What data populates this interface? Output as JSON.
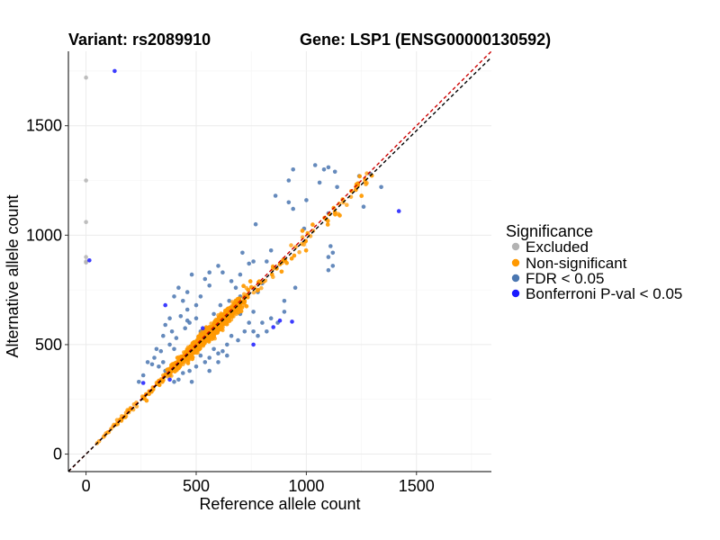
{
  "chart_data": {
    "type": "scatter",
    "title_left": "Variant: rs2089910",
    "title_right": "Gene: LSP1 (ENSG00000130592)",
    "xlabel": "Reference allele count",
    "ylabel": "Alternative allele count",
    "xlim": [
      -80,
      1840
    ],
    "ylim": [
      -80,
      1840
    ],
    "xticks": [
      0,
      500,
      1000,
      1500
    ],
    "yticks": [
      0,
      500,
      1000,
      1500
    ],
    "grid": true,
    "legend": {
      "title": "Significance",
      "position": "right",
      "entries": [
        {
          "key": "excluded",
          "label": "Excluded",
          "color": "#b3b3b3"
        },
        {
          "key": "nonsig",
          "label": "Non-significant",
          "color": "#ff9900"
        },
        {
          "key": "fdr",
          "label": "FDR < 0.05",
          "color": "#4a76b0"
        },
        {
          "key": "bonf",
          "label": "Bonferroni P-val < 0.05",
          "color": "#1a1aff"
        }
      ]
    },
    "reference_lines": [
      {
        "name": "identity",
        "slope": 1.0,
        "intercept": 0,
        "color": "#cc0000",
        "style": "dashed"
      },
      {
        "name": "fit",
        "slope": 0.985,
        "intercept": 0,
        "color": "#000000",
        "style": "dashed"
      }
    ],
    "series": [
      {
        "key": "excluded",
        "points": [
          [
            0,
            1720
          ],
          [
            0,
            1250
          ],
          [
            0,
            1060
          ],
          [
            0,
            900
          ],
          [
            0,
            880
          ],
          [
            0,
            875
          ]
        ]
      },
      {
        "key": "bonf",
        "points": [
          [
            130,
            1750
          ],
          [
            15,
            885
          ],
          [
            1420,
            1110
          ],
          [
            260,
            325
          ],
          [
            380,
            340
          ],
          [
            880,
            610
          ],
          [
            935,
            605
          ],
          [
            760,
            500
          ],
          [
            360,
            680
          ],
          [
            530,
            575
          ],
          [
            850,
            580
          ]
        ]
      },
      {
        "key": "fdr",
        "points": [
          [
            1040,
            1320
          ],
          [
            940,
            1300
          ],
          [
            1080,
            1300
          ],
          [
            1100,
            1310
          ],
          [
            1130,
            1290
          ],
          [
            1290,
            1280
          ],
          [
            1240,
            1270
          ],
          [
            920,
            1250
          ],
          [
            1060,
            1240
          ],
          [
            1140,
            1220
          ],
          [
            1340,
            1220
          ],
          [
            860,
            1180
          ],
          [
            1000,
            1160
          ],
          [
            920,
            1150
          ],
          [
            940,
            1120
          ],
          [
            1100,
            1100
          ],
          [
            1260,
            1130
          ],
          [
            770,
            1050
          ],
          [
            990,
            1030
          ],
          [
            1110,
            950
          ],
          [
            1120,
            920
          ],
          [
            1100,
            900
          ],
          [
            1120,
            860
          ],
          [
            1100,
            840
          ],
          [
            710,
            920
          ],
          [
            740,
            870
          ],
          [
            760,
            880
          ],
          [
            820,
            880
          ],
          [
            840,
            930
          ],
          [
            860,
            850
          ],
          [
            600,
            860
          ],
          [
            620,
            830
          ],
          [
            700,
            820
          ],
          [
            660,
            790
          ],
          [
            680,
            760
          ],
          [
            560,
            770
          ],
          [
            560,
            830
          ],
          [
            540,
            800
          ],
          [
            480,
            820
          ],
          [
            420,
            760
          ],
          [
            460,
            740
          ],
          [
            400,
            720
          ],
          [
            440,
            700
          ],
          [
            520,
            720
          ],
          [
            500,
            680
          ],
          [
            460,
            660
          ],
          [
            430,
            630
          ],
          [
            460,
            610
          ],
          [
            380,
            620
          ],
          [
            360,
            590
          ],
          [
            390,
            560
          ],
          [
            410,
            530
          ],
          [
            450,
            575
          ],
          [
            350,
            540
          ],
          [
            380,
            500
          ],
          [
            320,
            480
          ],
          [
            340,
            470
          ],
          [
            310,
            440
          ],
          [
            280,
            420
          ],
          [
            300,
            410
          ],
          [
            660,
            660
          ],
          [
            700,
            640
          ],
          [
            740,
            600
          ],
          [
            720,
            560
          ],
          [
            760,
            560
          ],
          [
            780,
            540
          ],
          [
            800,
            600
          ],
          [
            820,
            560
          ],
          [
            840,
            620
          ],
          [
            870,
            600
          ],
          [
            900,
            650
          ],
          [
            760,
            650
          ],
          [
            690,
            520
          ],
          [
            660,
            540
          ],
          [
            640,
            500
          ],
          [
            620,
            470
          ],
          [
            600,
            460
          ],
          [
            580,
            480
          ],
          [
            560,
            440
          ],
          [
            540,
            420
          ],
          [
            520,
            450
          ],
          [
            500,
            400
          ],
          [
            470,
            380
          ],
          [
            440,
            370
          ],
          [
            420,
            340
          ],
          [
            400,
            330
          ],
          [
            380,
            360
          ],
          [
            360,
            380
          ],
          [
            900,
            700
          ],
          [
            950,
            760
          ],
          [
            780,
            740
          ],
          [
            800,
            780
          ],
          [
            650,
            700
          ],
          [
            700,
            720
          ],
          [
            580,
            640
          ],
          [
            610,
            680
          ],
          [
            470,
            600
          ],
          [
            500,
            620
          ],
          [
            520,
            560
          ],
          [
            400,
            480
          ],
          [
            350,
            420
          ],
          [
            330,
            400
          ],
          [
            260,
            360
          ],
          [
            240,
            330
          ],
          [
            480,
            330
          ],
          [
            560,
            380
          ],
          [
            600,
            420
          ],
          [
            640,
            450
          ]
        ]
      },
      {
        "key": "nonsig",
        "points": "__generated__"
      }
    ]
  }
}
